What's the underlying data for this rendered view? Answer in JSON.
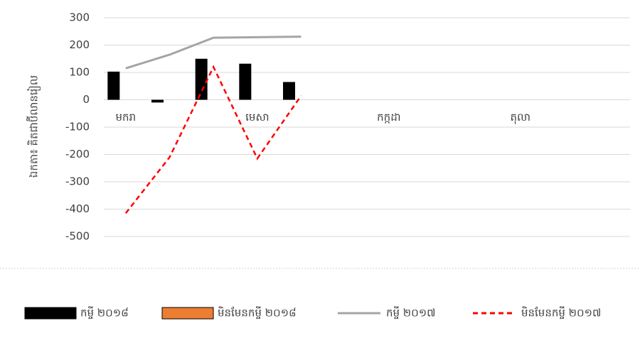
{
  "chart_data": {
    "type": "combo",
    "y_label": "ឯកតា៖ គិតជាប៊ីលានរៀល",
    "categories": [
      "មករា",
      null,
      null,
      "មេសា",
      null,
      null,
      "កក្កដា",
      null,
      null,
      "តុលា",
      null,
      null
    ],
    "series": [
      {
        "name": "កម្ចី ២០១៨",
        "type": "bar",
        "color": "#000000",
        "values": [
          103,
          -10,
          150,
          132,
          65,
          null,
          null,
          null,
          null,
          null,
          null,
          null
        ]
      },
      {
        "name": "មិនមែនកម្ចី ២០១៨",
        "type": "bar",
        "color": "#ed7d31",
        "values": [
          null,
          null,
          null,
          null,
          null,
          null,
          null,
          null,
          null,
          null,
          null,
          null
        ]
      },
      {
        "name": "កម្ចី ២០១៧",
        "type": "line",
        "color": "#a5a5a5",
        "dashed": false,
        "values": [
          115,
          165,
          227,
          229,
          231,
          null,
          null,
          null,
          null,
          null,
          null,
          null
        ]
      },
      {
        "name": "មិនមែនកម្ចី ២០១៧",
        "type": "line",
        "color": "#ff0000",
        "dashed": true,
        "values": [
          -415,
          -210,
          120,
          -215,
          15,
          null,
          null,
          null,
          null,
          null,
          null,
          null
        ]
      }
    ],
    "ylim": [
      -500,
      300
    ],
    "yticks": [
      -500,
      -400,
      -300,
      -200,
      -100,
      0,
      100,
      200,
      300
    ],
    "grid": true,
    "legend": "bottom"
  }
}
